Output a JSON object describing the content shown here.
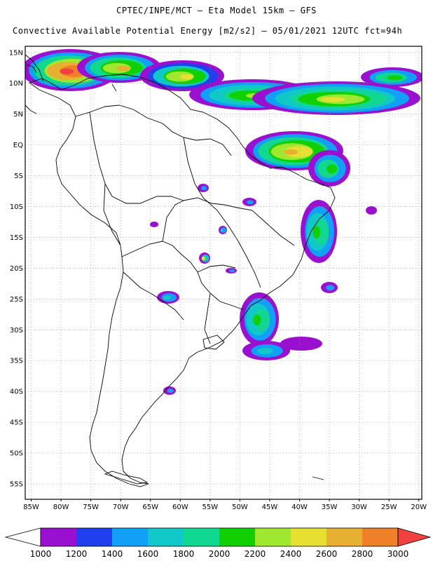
{
  "header": {
    "line1": "CPTEC/INPE/MCT –  Eta Model 15km – GFS",
    "line2": "Convective Available Potential Energy [m2/s2] – 05/01/2021 12UTC fct=94h"
  },
  "lat_labels": [
    "15N",
    "10N",
    "5N",
    "EQ",
    "5S",
    "10S",
    "15S",
    "20S",
    "25S",
    "30S",
    "35S",
    "40S",
    "45S",
    "50S",
    "55S"
  ],
  "lon_labels": [
    "85W",
    "80W",
    "75W",
    "70W",
    "65W",
    "60W",
    "55W",
    "50W",
    "45W",
    "40W",
    "35W",
    "30W",
    "25W",
    "20W"
  ],
  "map_extent": {
    "lon": [
      -86,
      -19.5
    ],
    "lat": [
      -57.5,
      16
    ]
  },
  "colorbar": {
    "labels": [
      "1000",
      "1200",
      "1400",
      "1600",
      "1800",
      "2000",
      "2200",
      "2400",
      "2600",
      "2800",
      "3000"
    ],
    "colors": [
      "#9a10d0",
      "#2040f0",
      "#10a0f8",
      "#10c8c8",
      "#10d890",
      "#10d000",
      "#a0e830",
      "#e8e030",
      "#e8b030",
      "#f08028",
      "#f04040"
    ],
    "below_color": "#ffffff",
    "above_color": "#f04040"
  }
}
